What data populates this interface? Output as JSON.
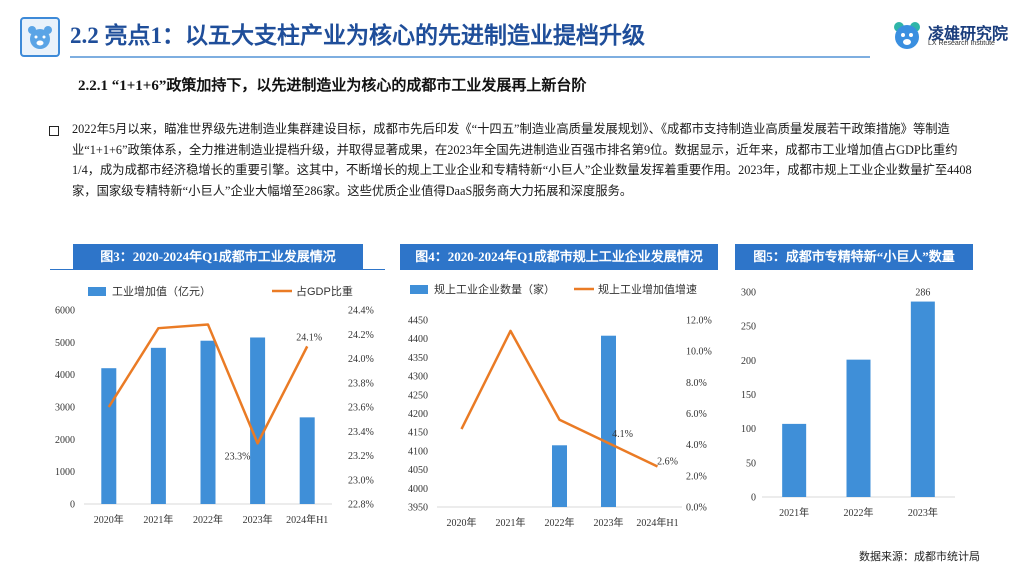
{
  "header": {
    "title": "2.2 亮点1：以五大支柱产业为核心的先进制造业提档升级",
    "brand_name": "凌雄研究院",
    "brand_sub": "LX Research Institute",
    "logo_icon": "bear-icon",
    "accent": "#1f4e9a"
  },
  "section": {
    "subtitle": "2.2.1 “1+1+6”政策加持下，以先进制造业为核心的成都市工业发展再上新台阶"
  },
  "body": {
    "paragraph": "2022年5月以来，瞄准世界级先进制造业集群建设目标，成都市先后印发《“十四五”制造业高质量发展规划》、《成都市支持制造业高质量发展若干政策措施》等制造业“1+1+6”政策体系，全力推进制造业提档升级，并取得显著成果，在2023年全国先进制造业百强市排名第9位。数据显示，近年来，成都市工业增加值占GDP比重约1/4，成为成都市经济稳增长的重要引擎。这其中，不断增长的规上工业企业和专精特新“小巨人”企业数量发挥着重要作用。2023年，成都市规上工业企业数量扩至4408家，国家级专精特新“小巨人”企业大幅增至286家。这些优质企业值得DaaS服务商大力拓展和深度服务。"
  },
  "panels": {
    "fig3_title": "图3：2020-2024年Q1成都市工业发展情况",
    "fig4_title": "图4：2020-2024年Q1成都市规上工业企业发展情况",
    "fig5_title": "图5：成都市专精特新“小巨人”数量"
  },
  "colors": {
    "bar": "#3f8fd8",
    "line": "#ea7b25",
    "panel": "#2e75c9"
  },
  "footer": {
    "source": "数据来源：成都市统计局"
  },
  "chart_data": [
    {
      "type": "bar",
      "categories": [
        "2020年",
        "2021年",
        "2022年",
        "2023年",
        "2024年H1"
      ],
      "series": [
        {
          "name": "工业增加值（亿元）",
          "type": "bar",
          "axis": "left",
          "values": [
            4200,
            4830,
            5050,
            5150,
            2680
          ]
        },
        {
          "name": "占GDP比重",
          "type": "line",
          "axis": "right",
          "values": [
            23.6,
            24.25,
            24.28,
            23.3,
            24.1
          ]
        }
      ],
      "left_ticks": [
        "0",
        "1000",
        "2000",
        "3000",
        "4000",
        "5000",
        "6000"
      ],
      "left_ylim": [
        0,
        6000
      ],
      "right_ticks": [
        "22.8%",
        "23.0%",
        "23.2%",
        "23.4%",
        "23.6%",
        "23.8%",
        "24.0%",
        "24.2%",
        "24.4%"
      ],
      "right_ylim": [
        22.8,
        24.4
      ],
      "point_labels": [
        {
          "index": 3,
          "text": "23.3%"
        },
        {
          "index": 4,
          "text": "24.1%"
        }
      ],
      "legend_position": "top"
    },
    {
      "type": "bar",
      "categories": [
        "2020年",
        "2021年",
        "2022年",
        "2023年",
        "2024年H1"
      ],
      "series": [
        {
          "name": "规上工业企业数量（家）",
          "type": "bar",
          "axis": "left",
          "values": [
            null,
            null,
            4115,
            4408,
            null
          ]
        },
        {
          "name": "规上工业增加值增速",
          "type": "line",
          "axis": "right",
          "values": [
            5.0,
            11.3,
            5.6,
            4.1,
            2.6
          ]
        }
      ],
      "left_ticks": [
        "3950",
        "4000",
        "4050",
        "4100",
        "4150",
        "4200",
        "4250",
        "4300",
        "4350",
        "4400",
        "4450"
      ],
      "left_ylim": [
        3950,
        4450
      ],
      "right_ticks": [
        "0.0%",
        "2.0%",
        "4.0%",
        "6.0%",
        "8.0%",
        "10.0%",
        "12.0%"
      ],
      "right_ylim": [
        0,
        12
      ],
      "point_labels": [
        {
          "index": 3,
          "text": "4.1%"
        },
        {
          "index": 4,
          "text": "2.6%"
        }
      ],
      "legend_position": "top"
    },
    {
      "type": "bar",
      "categories": [
        "2021年",
        "2022年",
        "2023年"
      ],
      "series": [
        {
          "values": [
            107,
            201,
            286
          ]
        }
      ],
      "left_ticks": [
        "0",
        "50",
        "100",
        "150",
        "200",
        "250",
        "300"
      ],
      "left_ylim": [
        0,
        300
      ],
      "point_labels": [
        {
          "index": 2,
          "text": "286"
        }
      ]
    }
  ]
}
